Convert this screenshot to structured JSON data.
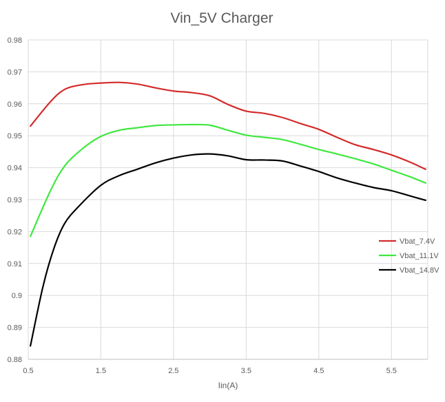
{
  "chart_data": {
    "type": "line",
    "title": "Vin_5V Charger",
    "xlabel": "Iin(A)",
    "ylabel": "",
    "xlim": [
      0.5,
      6.0
    ],
    "ylim": [
      0.88,
      0.98
    ],
    "x_ticks": [
      "0.5",
      "1.5",
      "2.5",
      "3.5",
      "4.5",
      "5.5"
    ],
    "y_ticks": [
      "0.88",
      "0.89",
      "0.9",
      "0.91",
      "0.92",
      "0.93",
      "0.94",
      "0.95",
      "0.96",
      "0.97",
      "0.98"
    ],
    "grid": true,
    "legend_position": "right",
    "series": [
      {
        "name": "Vbat_7.4V",
        "color": "#d42a2a",
        "x": [
          0.53,
          0.8,
          1.0,
          1.25,
          1.5,
          1.75,
          2.0,
          2.25,
          2.5,
          2.75,
          3.0,
          3.25,
          3.5,
          3.75,
          4.0,
          4.25,
          4.5,
          4.75,
          5.0,
          5.25,
          5.5,
          5.75,
          5.97
        ],
        "y": [
          0.953,
          0.9605,
          0.9645,
          0.966,
          0.9665,
          0.9667,
          0.9662,
          0.965,
          0.964,
          0.9635,
          0.9625,
          0.9598,
          0.9577,
          0.957,
          0.9557,
          0.9538,
          0.952,
          0.9495,
          0.9472,
          0.9457,
          0.944,
          0.9418,
          0.9395
        ]
      },
      {
        "name": "Vbat_11.1V",
        "color": "#3ee83e",
        "x": [
          0.53,
          0.8,
          1.0,
          1.25,
          1.5,
          1.75,
          2.0,
          2.25,
          2.5,
          2.75,
          3.0,
          3.25,
          3.5,
          3.75,
          4.0,
          4.25,
          4.5,
          4.75,
          5.0,
          5.25,
          5.5,
          5.75,
          5.97
        ],
        "y": [
          0.9185,
          0.9325,
          0.9405,
          0.946,
          0.9498,
          0.9517,
          0.9525,
          0.9532,
          0.9534,
          0.9535,
          0.9533,
          0.9517,
          0.9502,
          0.9495,
          0.9488,
          0.9473,
          0.9457,
          0.9443,
          0.9428,
          0.9412,
          0.9392,
          0.9372,
          0.9352
        ]
      },
      {
        "name": "Vbat_14.8V",
        "color": "#000000",
        "x": [
          0.53,
          0.7,
          0.85,
          1.0,
          1.2,
          1.5,
          1.75,
          2.0,
          2.25,
          2.5,
          2.75,
          3.0,
          3.25,
          3.5,
          3.75,
          4.0,
          4.25,
          4.5,
          4.75,
          5.0,
          5.25,
          5.5,
          5.75,
          5.97
        ],
        "y": [
          0.8842,
          0.9025,
          0.9145,
          0.9225,
          0.928,
          0.9345,
          0.9375,
          0.9395,
          0.9415,
          0.943,
          0.944,
          0.9443,
          0.9437,
          0.9425,
          0.9424,
          0.9421,
          0.9405,
          0.9388,
          0.9368,
          0.9352,
          0.9338,
          0.9328,
          0.9312,
          0.9298
        ]
      }
    ]
  }
}
